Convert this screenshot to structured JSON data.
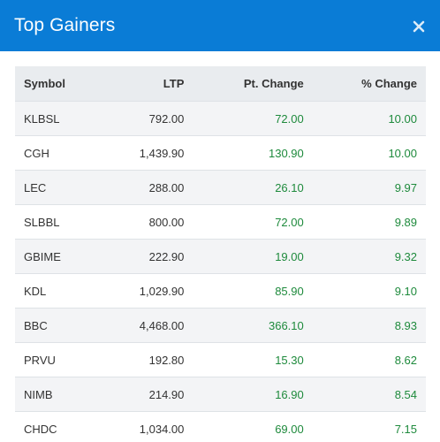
{
  "modal": {
    "title": "Top Gainers",
    "close_icon": "close-icon",
    "accent_color": "#0a7cd6",
    "gain_color": "#1e8a3c"
  },
  "table": {
    "headers": {
      "symbol": "Symbol",
      "ltp": "LTP",
      "pt_change": "Pt. Change",
      "pct_change": "% Change"
    },
    "rows": [
      {
        "symbol": "KLBSL",
        "ltp": "792.00",
        "pt_change": "72.00",
        "pct_change": "10.00"
      },
      {
        "symbol": "CGH",
        "ltp": "1,439.90",
        "pt_change": "130.90",
        "pct_change": "10.00"
      },
      {
        "symbol": "LEC",
        "ltp": "288.00",
        "pt_change": "26.10",
        "pct_change": "9.97"
      },
      {
        "symbol": "SLBBL",
        "ltp": "800.00",
        "pt_change": "72.00",
        "pct_change": "9.89"
      },
      {
        "symbol": "GBIME",
        "ltp": "222.90",
        "pt_change": "19.00",
        "pct_change": "9.32"
      },
      {
        "symbol": "KDL",
        "ltp": "1,029.90",
        "pt_change": "85.90",
        "pct_change": "9.10"
      },
      {
        "symbol": "BBC",
        "ltp": "4,468.00",
        "pt_change": "366.10",
        "pct_change": "8.93"
      },
      {
        "symbol": "PRVU",
        "ltp": "192.80",
        "pt_change": "15.30",
        "pct_change": "8.62"
      },
      {
        "symbol": "NIMB",
        "ltp": "214.90",
        "pt_change": "16.90",
        "pct_change": "8.54"
      },
      {
        "symbol": "CHDC",
        "ltp": "1,034.00",
        "pt_change": "69.00",
        "pct_change": "7.15"
      }
    ]
  }
}
